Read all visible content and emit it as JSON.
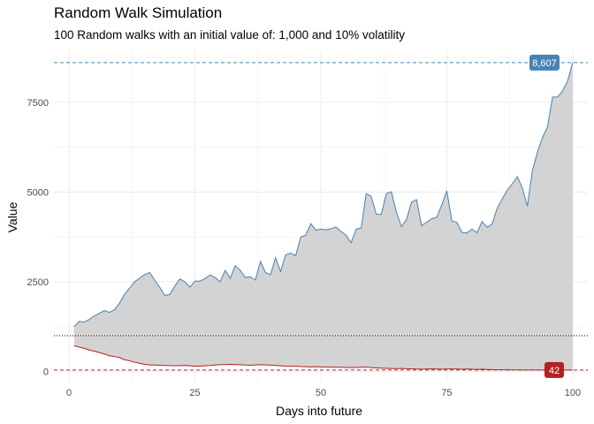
{
  "chart_data": {
    "type": "area",
    "title": "Random Walk Simulation",
    "subtitle": "100 Random walks with an initial value of: 1,000 and 10% volatility",
    "xlabel": "Days into future",
    "ylabel": "Value",
    "xlim": [
      -3,
      103
    ],
    "ylim": [
      -280,
      8950
    ],
    "x_ticks": [
      0,
      25,
      50,
      75,
      100
    ],
    "y_ticks": [
      0,
      2500,
      5000,
      7500
    ],
    "x_tick_labels": [
      "0",
      "25",
      "50",
      "75",
      "100"
    ],
    "y_tick_labels": [
      "0",
      "2500",
      "5000",
      "7500"
    ],
    "grid": true,
    "initial_value": 1000,
    "max_value": 8607,
    "min_value": 42,
    "max_label": "8,607",
    "min_label": "42",
    "colors": {
      "max_line": "#4682b4",
      "min_line": "#b22222",
      "fill": "#d3d3d3",
      "grid": "#ebebeb",
      "initial_line": "#000000"
    },
    "series": [
      {
        "name": "max",
        "x": [
          1,
          2,
          3,
          4,
          5,
          6,
          7,
          8,
          9,
          10,
          11,
          12,
          13,
          14,
          15,
          16,
          17,
          18,
          19,
          20,
          21,
          22,
          23,
          24,
          25,
          26,
          27,
          28,
          29,
          30,
          31,
          32,
          33,
          34,
          35,
          36,
          37,
          38,
          39,
          40,
          41,
          42,
          43,
          44,
          45,
          46,
          47,
          48,
          49,
          50,
          51,
          52,
          53,
          54,
          55,
          56,
          57,
          58,
          59,
          60,
          61,
          62,
          63,
          64,
          65,
          66,
          67,
          68,
          69,
          70,
          71,
          72,
          73,
          74,
          75,
          76,
          77,
          78,
          79,
          80,
          81,
          82,
          83,
          84,
          85,
          86,
          87,
          88,
          89,
          90,
          91,
          92,
          93,
          94,
          95,
          96,
          97,
          98,
          99,
          100
        ],
        "values": [
          1250,
          1400,
          1380,
          1450,
          1550,
          1620,
          1700,
          1650,
          1720,
          1900,
          2150,
          2320,
          2500,
          2600,
          2700,
          2760,
          2550,
          2350,
          2120,
          2150,
          2380,
          2580,
          2500,
          2350,
          2520,
          2520,
          2590,
          2690,
          2620,
          2500,
          2820,
          2600,
          2950,
          2820,
          2620,
          2640,
          2550,
          3070,
          2760,
          2700,
          3170,
          2790,
          3250,
          3300,
          3230,
          3750,
          3800,
          4120,
          3940,
          3970,
          3950,
          3980,
          4030,
          3900,
          3800,
          3590,
          3970,
          4000,
          4960,
          4880,
          4380,
          4380,
          4960,
          5010,
          4440,
          4040,
          4240,
          4720,
          4790,
          4060,
          4160,
          4260,
          4300,
          4640,
          5040,
          4200,
          4160,
          3880,
          3860,
          3970,
          3870,
          4180,
          4020,
          4110,
          4550,
          4810,
          5050,
          5230,
          5430,
          5120,
          4610,
          5600,
          6120,
          6520,
          6820,
          7650,
          7650,
          7820,
          8100,
          8607
        ]
      },
      {
        "name": "min",
        "x": [
          1,
          2,
          3,
          4,
          5,
          6,
          7,
          8,
          9,
          10,
          11,
          12,
          13,
          14,
          15,
          16,
          17,
          18,
          19,
          20,
          21,
          22,
          23,
          24,
          25,
          26,
          27,
          28,
          29,
          30,
          31,
          32,
          33,
          34,
          35,
          36,
          37,
          38,
          39,
          40,
          41,
          42,
          43,
          44,
          45,
          46,
          47,
          48,
          49,
          50,
          51,
          52,
          53,
          54,
          55,
          56,
          57,
          58,
          59,
          60,
          61,
          62,
          63,
          64,
          65,
          66,
          67,
          68,
          69,
          70,
          71,
          72,
          73,
          74,
          75,
          76,
          77,
          78,
          79,
          80,
          81,
          82,
          83,
          84,
          85,
          86,
          87,
          88,
          89,
          90,
          91,
          92,
          93,
          94,
          95,
          96,
          97,
          98,
          99,
          100
        ],
        "values": [
          720,
          680,
          650,
          600,
          570,
          530,
          490,
          440,
          420,
          390,
          330,
          300,
          260,
          230,
          200,
          185,
          180,
          175,
          170,
          165,
          160,
          165,
          170,
          160,
          150,
          150,
          160,
          170,
          185,
          190,
          195,
          200,
          195,
          190,
          180,
          175,
          185,
          190,
          185,
          180,
          170,
          160,
          150,
          145,
          150,
          140,
          135,
          130,
          135,
          130,
          125,
          120,
          125,
          120,
          115,
          110,
          115,
          120,
          125,
          110,
          100,
          95,
          90,
          85,
          80,
          85,
          80,
          75,
          70,
          65,
          70,
          75,
          70,
          65,
          70,
          75,
          70,
          65,
          70,
          65,
          60,
          65,
          60,
          55,
          50,
          50,
          48,
          46,
          45,
          44,
          43,
          42,
          43,
          44,
          45,
          44,
          43,
          42,
          42,
          42
        ]
      }
    ]
  }
}
